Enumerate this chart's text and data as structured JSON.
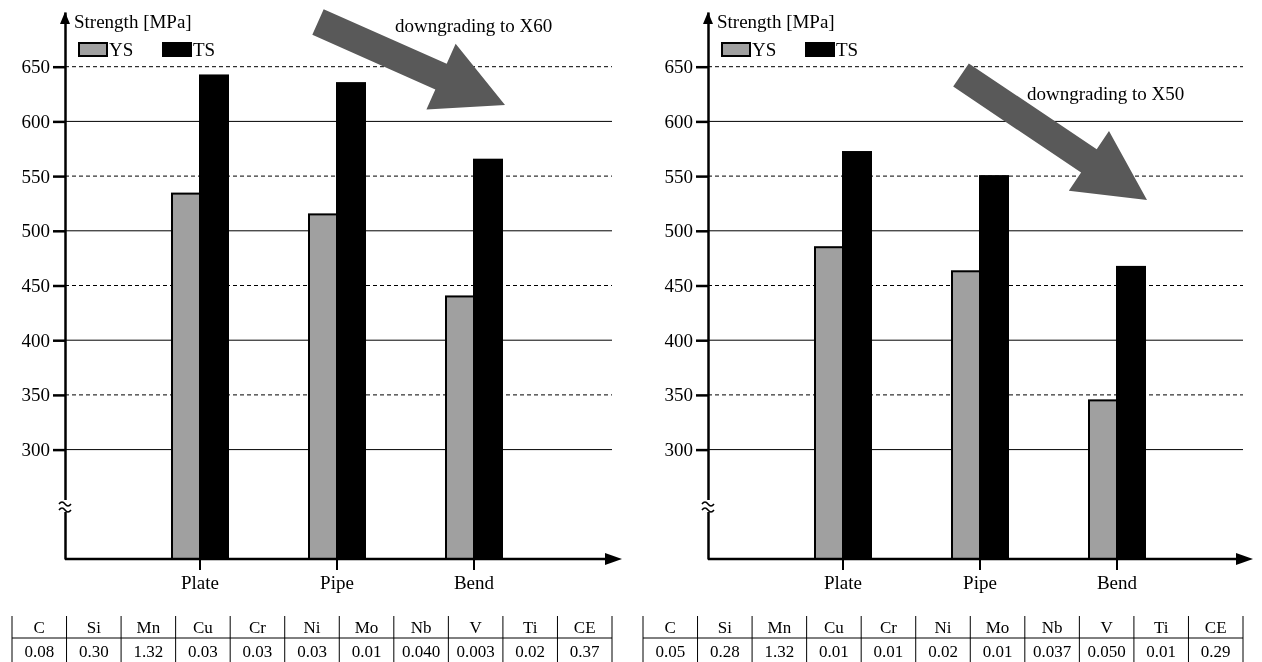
{
  "chart_data": [
    {
      "type": "bar",
      "ylabel": "Strength [MPa]",
      "categories": [
        "Plate",
        "Pipe",
        "Bend"
      ],
      "series": [
        {
          "name": "YS",
          "color": "#a0a0a0",
          "values": [
            534,
            515,
            440
          ]
        },
        {
          "name": "TS",
          "color": "#000000",
          "values": [
            642,
            635,
            565
          ]
        }
      ],
      "ylim": [
        200,
        700
      ],
      "yticks": [
        300,
        350,
        400,
        450,
        500,
        550,
        600,
        650
      ],
      "grid": "y",
      "legend": "top left",
      "annotations": [
        "downgrading to X60",
        "C",
        "Si",
        "Mn",
        "Cu",
        "Cr",
        "Ni",
        "Mo",
        "Nb",
        "V",
        "Ti",
        "CE",
        "0.08",
        "0.30",
        "1.32",
        "0.03",
        "0.03",
        "0.03",
        "0.01",
        "0.040",
        "0.003",
        "0.02",
        "0.37"
      ]
    },
    {
      "type": "bar",
      "ylabel": "Strength [MPa]",
      "categories": [
        "Plate",
        "Pipe",
        "Bend"
      ],
      "series": [
        {
          "name": "YS",
          "color": "#a0a0a0",
          "values": [
            485,
            463,
            345
          ]
        },
        {
          "name": "TS",
          "color": "#000000",
          "values": [
            572,
            550,
            467
          ]
        }
      ],
      "ylim": [
        200,
        700
      ],
      "yticks": [
        300,
        350,
        400,
        450,
        500,
        550,
        600,
        650
      ],
      "grid": "y",
      "legend": "top left",
      "annotations": [
        "downgrading to X50",
        "C",
        "Si",
        "Mn",
        "Cu",
        "Cr",
        "Ni",
        "Mo",
        "Nb",
        "V",
        "Ti",
        "CE",
        "0.05",
        "0.28",
        "1.32",
        "0.01",
        "0.01",
        "0.02",
        "0.01",
        "0.037",
        "0.050",
        "0.01",
        "0.29"
      ]
    }
  ]
}
